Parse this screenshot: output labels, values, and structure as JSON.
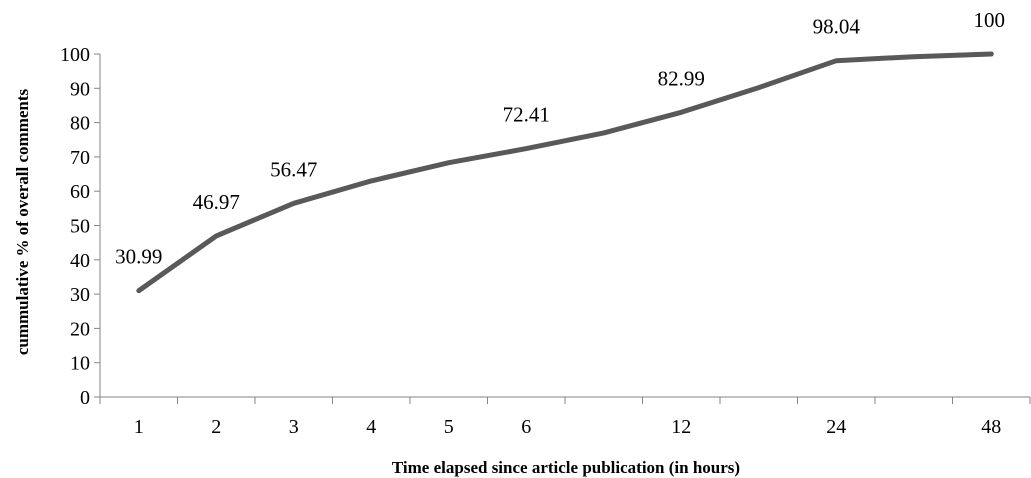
{
  "chart_data": {
    "type": "line",
    "title": "",
    "xlabel": "Time elapsed since article publication (in hours)",
    "ylabel": "cummulative % of overall comments",
    "ylim": [
      0,
      100
    ],
    "yticks": [
      0,
      10,
      20,
      30,
      40,
      50,
      60,
      70,
      80,
      90,
      100
    ],
    "categories": [
      "1",
      "2",
      "3",
      "4",
      "5",
      "6",
      "",
      "12",
      "",
      "24",
      "",
      "48"
    ],
    "series": [
      {
        "name": "",
        "color": "#595959",
        "values": [
          30.99,
          46.97,
          56.47,
          63.0,
          68.3,
          72.41,
          77.0,
          82.99,
          90.2,
          98.04,
          99.2,
          100
        ]
      }
    ],
    "data_labels": [
      {
        "index": 0,
        "text": "30.99"
      },
      {
        "index": 1,
        "text": "46.97"
      },
      {
        "index": 2,
        "text": "56.47"
      },
      {
        "index": 5,
        "text": "72.41"
      },
      {
        "index": 7,
        "text": "82.99"
      },
      {
        "index": 9,
        "text": "98.04"
      },
      {
        "index": 11,
        "text": "100"
      }
    ],
    "grid": false,
    "legend": "none"
  }
}
